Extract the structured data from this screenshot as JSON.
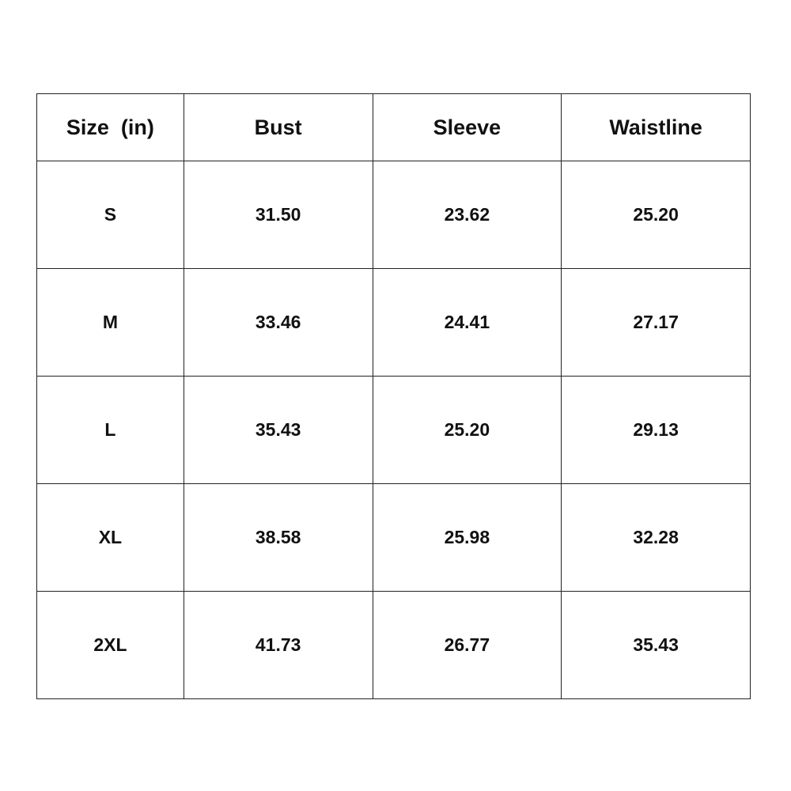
{
  "table": {
    "headers": [
      "Size  (in)",
      "Bust",
      "Sleeve",
      "Waistline"
    ],
    "rows": [
      [
        "S",
        "31.50",
        "23.62",
        "25.20"
      ],
      [
        "M",
        "33.46",
        "24.41",
        "27.17"
      ],
      [
        "L",
        "35.43",
        "25.20",
        "29.13"
      ],
      [
        "XL",
        "38.58",
        "25.98",
        "32.28"
      ],
      [
        "2XL",
        "41.73",
        "26.77",
        "35.43"
      ]
    ]
  }
}
